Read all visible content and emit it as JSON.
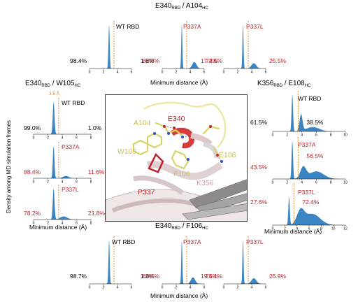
{
  "colors": {
    "fill": "#3b86c2",
    "cutoff": "#e58a2a",
    "red": "#c0202a",
    "black": "#000000",
    "yellow": "#e5e28a",
    "pink": "#e8c4c6"
  },
  "y_axis_label": "Density among MD simulation frames",
  "cutoff_label": "3.5 Å",
  "groups": {
    "top": {
      "title_main": "E340",
      "title_sub1": "RBD",
      "title_mid": " / A104",
      "title_sub2": "HC",
      "xlabel": "Minimum distance (Å)"
    },
    "left": {
      "title_main": "E340",
      "title_sub1": "RBD",
      "title_mid": " / W105",
      "title_sub2": "HC",
      "xlabel": "Minimum distance (Å)"
    },
    "right": {
      "title_main": "K356",
      "title_sub1": "RBD",
      "title_mid": " / E108",
      "title_sub2": "HC",
      "xlabel": "Minimum distance (Å)"
    },
    "bottom": {
      "title_main": "E340",
      "title_sub1": "RBD",
      "title_mid": " / F106",
      "title_sub2": "HC",
      "xlabel": "Minimum distance (Å)"
    }
  },
  "chart_data": [
    {
      "type": "area",
      "group": "top",
      "label": "WT RBD",
      "left_pct": "98.4%",
      "right_pct": "1.6%",
      "color": "black",
      "x_ticks": [
        "0",
        "2",
        "4",
        "6"
      ],
      "cutoff": 3.5,
      "xmax": 6,
      "peaks": [
        [
          2.8,
          1.0,
          0.09
        ]
      ]
    },
    {
      "type": "area",
      "group": "top",
      "label": "P337A",
      "left_pct": "82.8%",
      "right_pct": "17.2%",
      "color": "red",
      "x_ticks": [
        "0",
        "2",
        "4",
        "6"
      ],
      "cutoff": 3.5,
      "xmax": 6,
      "peaks": [
        [
          2.8,
          1.0,
          0.08
        ],
        [
          4.6,
          0.15,
          0.3
        ]
      ]
    },
    {
      "type": "area",
      "group": "top",
      "label": "P337L",
      "left_pct": "74.5%",
      "right_pct": "25.5%",
      "color": "red",
      "x_ticks": [
        "0",
        "2",
        "4",
        "6"
      ],
      "cutoff": 3.5,
      "xmax": 6,
      "peaks": [
        [
          2.75,
          1.0,
          0.08
        ],
        [
          4.3,
          0.12,
          0.35
        ]
      ]
    },
    {
      "type": "area",
      "group": "left",
      "label": "WT RBD",
      "left_pct": "99.0%",
      "right_pct": "1.0%",
      "color": "black",
      "x_ticks": [
        "0",
        "2",
        "4",
        "6",
        "8"
      ],
      "cutoff": 3.5,
      "xmax": 8,
      "peaks": [
        [
          2.8,
          1.0,
          0.12
        ]
      ]
    },
    {
      "type": "area",
      "group": "left",
      "label": "P337A",
      "left_pct": "88.4%",
      "right_pct": "11.6%",
      "color": "red",
      "x_ticks": [
        "0",
        "2",
        "4",
        "6",
        "8"
      ],
      "cutoff": 3.5,
      "xmax": 8,
      "peaks": [
        [
          2.8,
          1.0,
          0.11
        ],
        [
          4.5,
          0.07,
          0.4
        ]
      ]
    },
    {
      "type": "area",
      "group": "left",
      "label": "P337L",
      "left_pct": "78.2%",
      "right_pct": "21.8%",
      "color": "red",
      "x_ticks": [
        "0",
        "2",
        "4",
        "6",
        "8"
      ],
      "cutoff": 3.5,
      "xmax": 8,
      "peaks": [
        [
          2.8,
          1.0,
          0.12
        ],
        [
          4.2,
          0.1,
          0.5
        ]
      ]
    },
    {
      "type": "area",
      "group": "right",
      "label": "WT RBD",
      "left_pct": "61.5%",
      "right_pct": "38.5%",
      "color": "black",
      "x_ticks": [
        "0",
        "2",
        "4",
        "6",
        "8",
        "10"
      ],
      "cutoff": 3.5,
      "xmax": 10,
      "peaks": [
        [
          2.7,
          1.0,
          0.1
        ],
        [
          3.9,
          0.45,
          0.2
        ],
        [
          5.5,
          0.12,
          0.9
        ]
      ]
    },
    {
      "type": "area",
      "group": "right",
      "label": "P337A",
      "left_pct": "43.5%",
      "right_pct": "56.5%",
      "color": "red",
      "x_ticks": [
        "0",
        "2",
        "4",
        "6",
        "8",
        "10"
      ],
      "cutoff": 3.5,
      "xmax": 10,
      "peaks": [
        [
          2.7,
          1.0,
          0.1
        ],
        [
          4.2,
          0.3,
          0.4
        ],
        [
          6.0,
          0.2,
          1.0
        ]
      ]
    },
    {
      "type": "area",
      "group": "right",
      "label": "P337L",
      "left_pct": "27.6%",
      "right_pct": "72.4%",
      "color": "red",
      "x_ticks": [
        "0",
        "2",
        "4",
        "6",
        "8",
        "10",
        "12"
      ],
      "cutoff": 3.5,
      "xmax": 12,
      "peaks": [
        [
          2.7,
          0.7,
          0.12
        ],
        [
          4.6,
          0.32,
          0.6
        ],
        [
          6.5,
          0.28,
          1.3
        ]
      ]
    },
    {
      "type": "area",
      "group": "bottom",
      "label": "WT RBD",
      "left_pct": "98.7%",
      "right_pct": "1.3%",
      "color": "black",
      "x_ticks": [
        "0",
        "2",
        "4",
        "6"
      ],
      "cutoff": 3.5,
      "xmax": 6,
      "peaks": [
        [
          2.8,
          1.0,
          0.09
        ]
      ]
    },
    {
      "type": "area",
      "group": "bottom",
      "label": "P337A",
      "left_pct": "80.5%",
      "right_pct": "19.5%",
      "color": "red",
      "x_ticks": [
        "0",
        "2",
        "4",
        "6"
      ],
      "cutoff": 3.5,
      "xmax": 6,
      "peaks": [
        [
          2.8,
          1.0,
          0.08
        ],
        [
          4.4,
          0.15,
          0.3
        ]
      ]
    },
    {
      "type": "area",
      "group": "bottom",
      "label": "P337L",
      "left_pct": "74.1%",
      "right_pct": "25.9%",
      "color": "red",
      "x_ticks": [
        "0",
        "2",
        "4",
        "6"
      ],
      "cutoff": 3.5,
      "xmax": 6,
      "peaks": [
        [
          2.75,
          1.0,
          0.08
        ],
        [
          4.3,
          0.13,
          0.35
        ]
      ]
    }
  ],
  "structure": {
    "residue_labels": [
      {
        "name": "A104",
        "color": "#c8c25a"
      },
      {
        "name": "E340",
        "color": "#c0202a"
      },
      {
        "name": "W105",
        "color": "#c8c25a"
      },
      {
        "name": "E108",
        "color": "#c8c25a"
      },
      {
        "name": "F106",
        "color": "#c8c25a"
      },
      {
        "name": "P337",
        "color": "#c0202a"
      },
      {
        "name": "K356",
        "color": "#d0a0a8"
      }
    ]
  }
}
